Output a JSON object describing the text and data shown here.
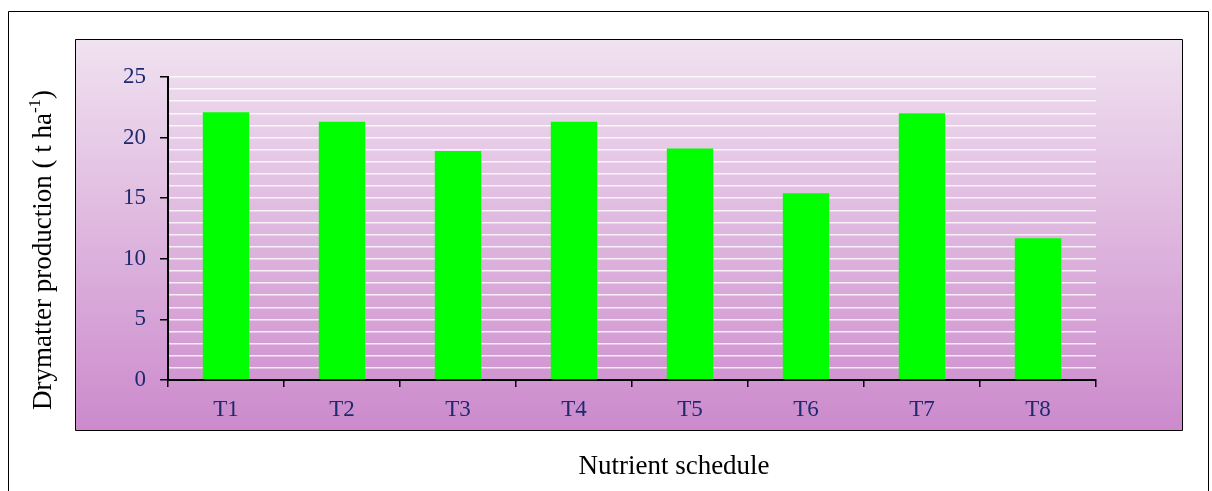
{
  "chart_data": {
    "type": "bar",
    "xlabel": "Nutrient schedule",
    "ylabel": "Drymatter production ( t ha$^{-1}$)",
    "categories": [
      "T1",
      "T2",
      "T3",
      "T4",
      "T5",
      "T6",
      "T7",
      "T8"
    ],
    "values": [
      22.1,
      21.3,
      18.9,
      21.3,
      19.1,
      15.4,
      22.0,
      11.7
    ],
    "color": "#00ff00",
    "ylim": [
      0,
      25
    ],
    "yticks": [
      0,
      {
        "value": 1,
        "label": null
      },
      {
        "value": 2,
        "label": null
      },
      {
        "value": 3,
        "label": null
      },
      {
        "value": 4,
        "label": null
      },
      5,
      {
        "value": 6,
        "label": null
      },
      {
        "value": 7,
        "label": null
      },
      {
        "value": 8,
        "label": null
      },
      {
        "value": 9,
        "label": null
      },
      10,
      {
        "value": 11,
        "label": null
      },
      {
        "value": 12,
        "label": null
      },
      {
        "value": 13,
        "label": null
      },
      {
        "value": 14,
        "label": null
      },
      15,
      {
        "value": 16,
        "label": null
      },
      {
        "value": 17,
        "label": null
      },
      {
        "value": 18,
        "label": null
      },
      {
        "value": 19,
        "label": null
      },
      20,
      {
        "value": 21,
        "label": null
      },
      {
        "value": 22,
        "label": null
      },
      {
        "value": 23,
        "label": null
      },
      {
        "value": 24,
        "label": null
      },
      25
    ],
    "grid": "y"
  }
}
